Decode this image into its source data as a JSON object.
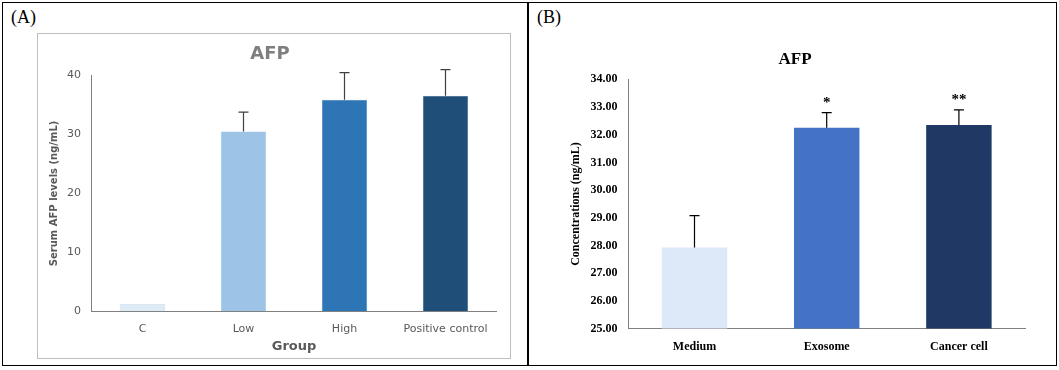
{
  "chart_data": [
    {
      "type": "bar",
      "panel_label": "(A)",
      "title": "AFP",
      "x_label": "Group",
      "y_label": "Serum AFP levels (ng/mL)",
      "categories": [
        "C",
        "Low",
        "High",
        "Positive control"
      ],
      "values": [
        1.2,
        30.5,
        35.9,
        36.6
      ],
      "errors": [
        0,
        3.3,
        4.6,
        4.4
      ],
      "colors": [
        "#ddebf7",
        "#9dc3e6",
        "#2e75b6",
        "#1f4e79"
      ],
      "ylim": [
        0,
        40
      ],
      "yticks": [
        0,
        10,
        20,
        30,
        40
      ],
      "grid": false
    },
    {
      "type": "bar",
      "panel_label": "(B)",
      "title": "AFP",
      "y_label": "Concentrations (ng/mL)",
      "categories": [
        "Medium",
        "Exosome",
        "Cancer cell"
      ],
      "values": [
        27.93,
        32.25,
        32.35
      ],
      "errors": [
        1.15,
        0.55,
        0.55
      ],
      "value_annotations": [
        null,
        "*",
        "**"
      ],
      "colors": [
        "#dde8f8",
        "#4472c4",
        "#1f3864"
      ],
      "ylim": [
        25,
        34
      ],
      "yticks": [
        {
          "value": 25,
          "label": "25.00"
        },
        {
          "value": 26,
          "label": "26.00"
        },
        {
          "value": 27,
          "label": "27.00"
        },
        {
          "value": 28,
          "label": "28.00"
        },
        {
          "value": 29,
          "label": "29.00"
        },
        {
          "value": 30,
          "label": "30.00"
        },
        {
          "value": 31,
          "label": "31.00"
        },
        {
          "value": 32,
          "label": "32.00"
        },
        {
          "value": 33,
          "label": "33.00"
        },
        {
          "value": 34,
          "label": "34.00"
        }
      ],
      "grid": false
    }
  ]
}
